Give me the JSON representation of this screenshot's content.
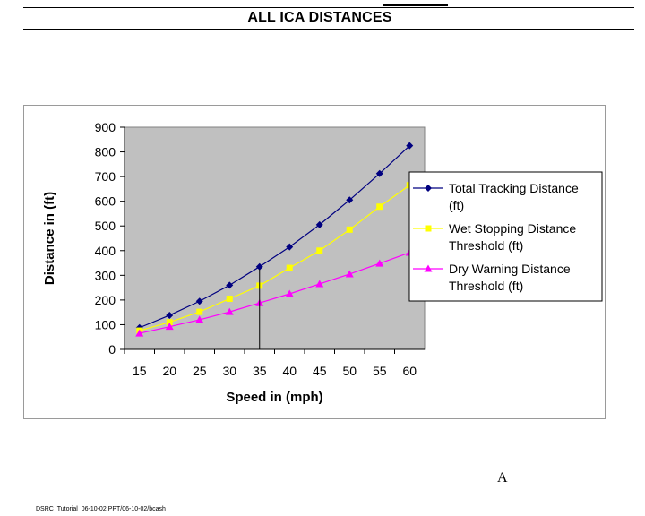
{
  "header": {
    "title": "ALL ICA DISTANCES"
  },
  "chart_data": {
    "type": "line",
    "title": "",
    "xlabel": "Speed in (mph)",
    "ylabel": "Distance in (ft)",
    "x": [
      15,
      20,
      25,
      30,
      35,
      40,
      45,
      50,
      55,
      60
    ],
    "ylim": [
      0,
      900
    ],
    "yticks": [
      0,
      100,
      200,
      300,
      400,
      500,
      600,
      700,
      800,
      900
    ],
    "grid": false,
    "plot_background": "#c0c0c0",
    "legend_position": "right",
    "marker_line_at_x": 35,
    "series": [
      {
        "name": "Total Tracking Distance (ft)",
        "legend_lines": [
          "Total Tracking Distance",
          "(ft)"
        ],
        "color": "#000080",
        "marker": "diamond",
        "values": [
          88,
          138,
          195,
          260,
          335,
          415,
          505,
          605,
          712,
          825
        ]
      },
      {
        "name": " Wet Stopping Distance Threshold (ft)",
        "legend_lines": [
          " Wet Stopping Distance",
          "Threshold (ft)"
        ],
        "color": "#ffff00",
        "marker": "square",
        "values": [
          76,
          110,
          152,
          205,
          258,
          330,
          400,
          485,
          578,
          665
        ]
      },
      {
        "name": "Dry Warning Distance Threshold  (ft)",
        "legend_lines": [
          "Dry Warning Distance",
          "Threshold  (ft)"
        ],
        "color": "#ff00ff",
        "marker": "triangle",
        "values": [
          65,
          92,
          120,
          152,
          188,
          225,
          265,
          305,
          348,
          392
        ]
      }
    ]
  },
  "footer": {
    "letter": "A",
    "text": "DSRC_Tutorial_06-10-02.PPT/06-10-02/bcash"
  }
}
